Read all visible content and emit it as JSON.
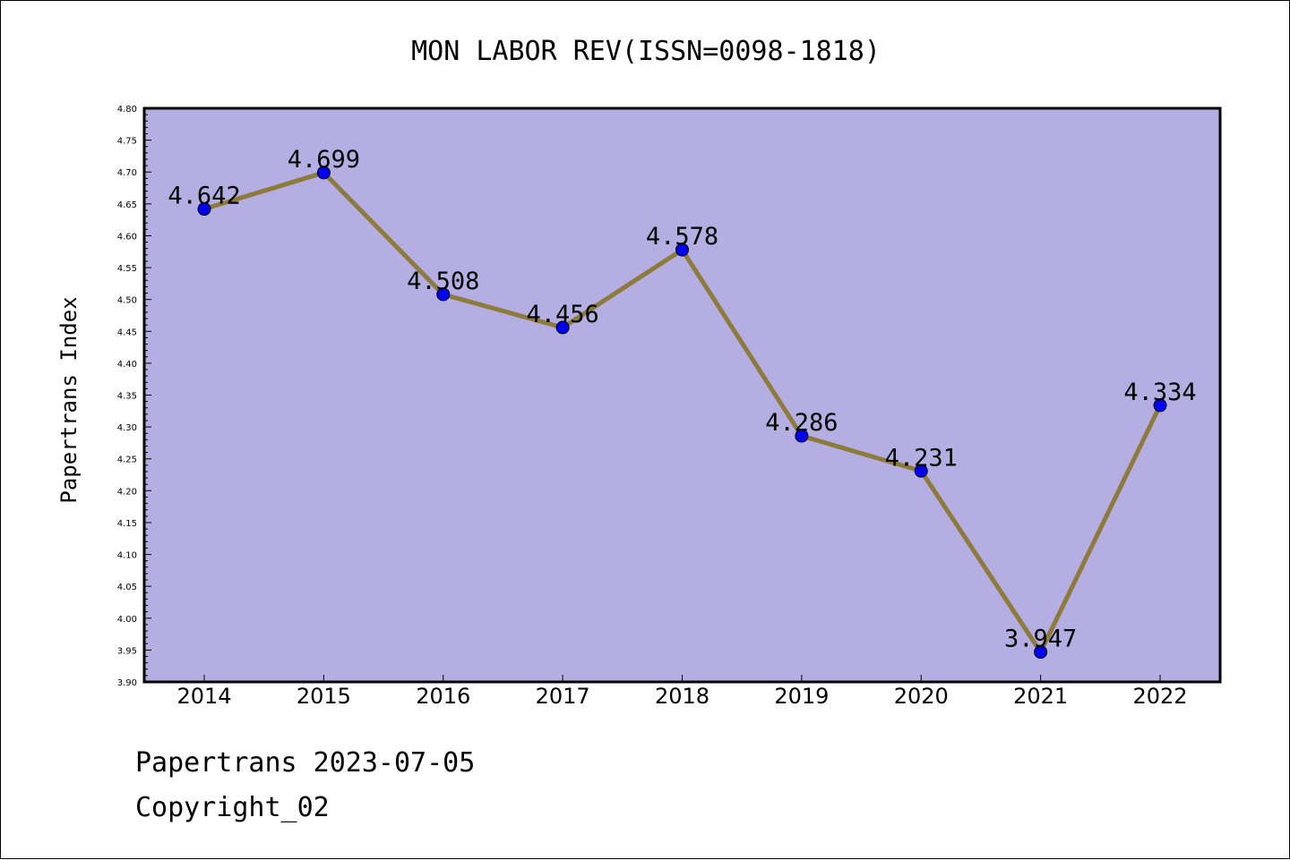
{
  "chart_data": {
    "type": "line",
    "title": "MON LABOR REV(ISSN=0098-1818)",
    "ylabel": "Papertrans Index",
    "xlabel": "",
    "categories": [
      "2014",
      "2015",
      "2016",
      "2017",
      "2018",
      "2019",
      "2020",
      "2021",
      "2022"
    ],
    "values": [
      4.642,
      4.699,
      4.508,
      4.456,
      4.578,
      4.286,
      4.231,
      3.947,
      4.334
    ],
    "data_labels": [
      "4.642",
      "4.699",
      "4.508",
      "4.456",
      "4.578",
      "4.286",
      "4.231",
      "3.947",
      "4.334"
    ],
    "ylim": [
      3.9,
      4.8
    ],
    "yticks": [
      "3.90",
      "3.95",
      "4.00",
      "4.05",
      "4.10",
      "4.15",
      "4.20",
      "4.25",
      "4.30",
      "4.35",
      "4.40",
      "4.45",
      "4.50",
      "4.55",
      "4.60",
      "4.65",
      "4.70",
      "4.75",
      "4.80"
    ],
    "grid": false,
    "colors": {
      "plot_background": "#b5aee2",
      "line": "#8c7b3a",
      "marker": "#0000ee"
    }
  },
  "footer": {
    "line1": "Papertrans 2023-07-05",
    "line2": "Copyright_02"
  }
}
